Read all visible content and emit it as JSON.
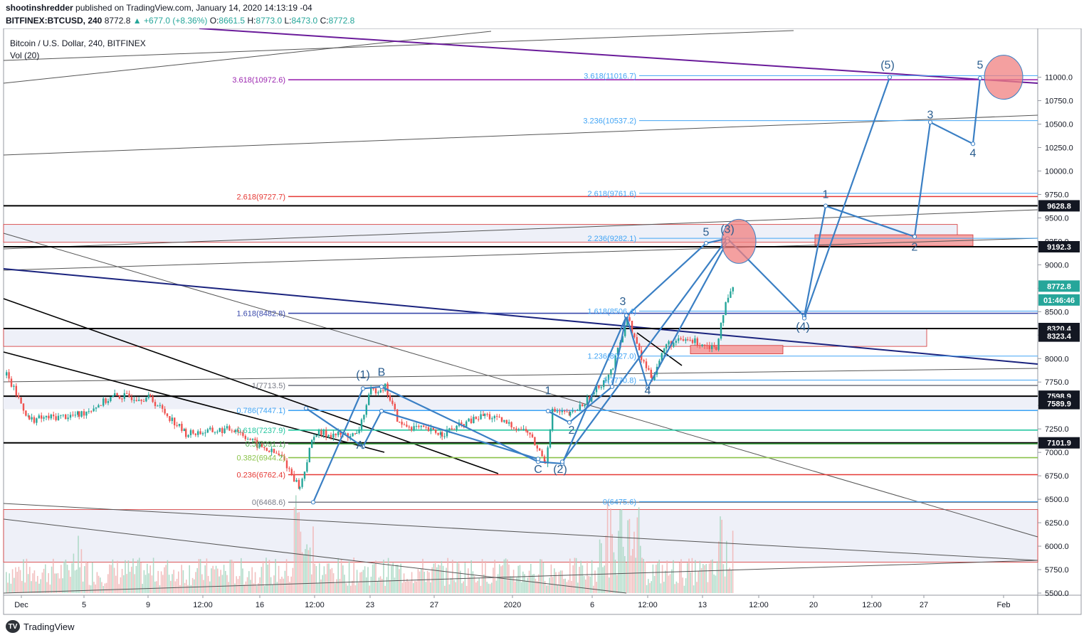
{
  "header": {
    "publisher": "shootinshredder",
    "published_text": "published on TradingView.com, January 14, 2020 14:13:19 -04",
    "symbol": "BITFINEX:BTCUSD, 240",
    "last": "8772.8",
    "change": "+677.0 (+8.36%)",
    "o_label": "O:",
    "o_value": "8661.5",
    "h_label": "H:",
    "h_value": "8773.0",
    "l_label": "L:",
    "l_value": "8473.0",
    "c_label": "C:",
    "c_value": "8772.8"
  },
  "legend": {
    "title": "Bitcoin / U.S. Dollar, 240, BITFINEX",
    "volume": "Vol (20)"
  },
  "footer": {
    "brand": "TradingView"
  },
  "colors": {
    "bull": "#26a69a",
    "bear": "#ef5350",
    "wave": "#3a7fc4",
    "purple_line": "#6a1b9a",
    "navy_line": "#1a237e"
  },
  "chart_data": {
    "type": "candlestick",
    "symbol": "BITFINEX:BTCUSD",
    "timeframe": "240",
    "ylim": [
      5500,
      11300
    ],
    "yticks": [
      5500,
      5750,
      6000,
      6250,
      6500,
      6750,
      7000,
      7250,
      7500,
      7750,
      8000,
      8250,
      8500,
      8750,
      9000,
      9250,
      9500,
      9750,
      10000,
      10250,
      10500,
      10750,
      11000
    ],
    "xlim": [
      0,
      1452
    ],
    "xticks": [
      {
        "x": 30,
        "label": "Dec"
      },
      {
        "x": 118,
        "label": "5"
      },
      {
        "x": 208,
        "label": "9"
      },
      {
        "x": 285,
        "label": "12:00"
      },
      {
        "x": 365,
        "label": "16"
      },
      {
        "x": 442,
        "label": "12:00"
      },
      {
        "x": 520,
        "label": "23"
      },
      {
        "x": 610,
        "label": "27"
      },
      {
        "x": 720,
        "label": "2020"
      },
      {
        "x": 832,
        "label": "6"
      },
      {
        "x": 910,
        "label": "12:00"
      },
      {
        "x": 987,
        "label": "13"
      },
      {
        "x": 1066,
        "label": "12:00"
      },
      {
        "x": 1143,
        "label": "20"
      },
      {
        "x": 1225,
        "label": "12:00"
      },
      {
        "x": 1298,
        "label": "27"
      },
      {
        "x": 1410,
        "label": "Feb"
      }
    ],
    "price_badges": [
      {
        "value": 9628.8,
        "label": "9628.8",
        "bg": "#131722"
      },
      {
        "value": 9192.3,
        "label": "9192.3",
        "bg": "#131722"
      },
      {
        "value": 8772.8,
        "label": "8772.8",
        "bg": "#26a69a"
      },
      {
        "value": 8625,
        "label": "01:46:46",
        "bg": "#26a69a"
      },
      {
        "value": 8320.4,
        "label": "8320.4",
        "bg": "#131722"
      },
      {
        "value": 8240,
        "label": "8323.4",
        "bg": "#131722"
      },
      {
        "value": 7598.9,
        "label": "7598.9",
        "bg": "#131722"
      },
      {
        "value": 7520,
        "label": "7589.9",
        "bg": "#131722"
      },
      {
        "value": 7101.9,
        "label": "7101.9",
        "bg": "#131722"
      }
    ],
    "horizontal_levels": [
      {
        "value": 9628.8,
        "color": "#000000",
        "width": 2
      },
      {
        "value": 9192.3,
        "color": "#000000",
        "width": 2
      },
      {
        "value": 8320.4,
        "color": "#000000",
        "width": 2
      },
      {
        "value": 7598.9,
        "color": "#000000",
        "width": 2
      },
      {
        "value": 7101.9,
        "color": "#000000",
        "width": 2
      }
    ],
    "fib_left": [
      {
        "value": 10972.6,
        "label": "3.618(10972.6)",
        "color": "#9c27b0"
      },
      {
        "value": 9727.7,
        "label": "2.618(9727.7)",
        "color": "#e53935"
      },
      {
        "value": 8482.8,
        "label": "1.618(8482.8)",
        "color": "#3949ab"
      },
      {
        "value": 7713.5,
        "label": "1(7713.5)",
        "color": "#787b86"
      },
      {
        "value": 7447.1,
        "label": "0.786(7447.1)",
        "color": "#42a5f5"
      },
      {
        "value": 7237.9,
        "label": "0.618(7237.9)",
        "color": "#26c6a0"
      },
      {
        "value": 7091.1,
        "label": "0.5(7091.1)",
        "color": "#4caf50"
      },
      {
        "value": 6944.2,
        "label": "0.382(6944.2)",
        "color": "#8bc34a"
      },
      {
        "value": 6762.4,
        "label": "0.236(6762.4)",
        "color": "#e53935"
      },
      {
        "value": 6468.6,
        "label": "0(6468.6)",
        "color": "#787b86"
      }
    ],
    "fib_right": [
      {
        "value": 11016.7,
        "label": "3.618(11016.7)",
        "color": "#42a5f5"
      },
      {
        "value": 10537.2,
        "label": "3.236(10537.2)",
        "color": "#42a5f5"
      },
      {
        "value": 9761.6,
        "label": "2.618(9761.6)",
        "color": "#42a5f5"
      },
      {
        "value": 9282.1,
        "label": "2.236(9282.1)",
        "color": "#42a5f5"
      },
      {
        "value": 8506.4,
        "label": "1.618(8506.4)",
        "color": "#42a5f5"
      },
      {
        "value": 8027.0,
        "label": "1.236(8027.0)",
        "color": "#42a5f5"
      },
      {
        "value": 7770.8,
        "label": "1(7770.8)",
        "color": "#42a5f5"
      },
      {
        "value": 6475.6,
        "label": "0(6475.6)",
        "color": "#42a5f5"
      }
    ],
    "wave_labels": [
      {
        "text": "(1)",
        "x": 510,
        "y": 7790
      },
      {
        "text": "B",
        "x": 536,
        "y": 7815
      },
      {
        "text": "A",
        "x": 506,
        "y": 7040
      },
      {
        "text": "C",
        "x": 756,
        "y": 6780
      },
      {
        "text": "(2)",
        "x": 787,
        "y": 6780
      },
      {
        "text": "1",
        "x": 770,
        "y": 7620
      },
      {
        "text": "2",
        "x": 803,
        "y": 7200
      },
      {
        "text": "3",
        "x": 875,
        "y": 8570
      },
      {
        "text": "4",
        "x": 910,
        "y": 7620
      },
      {
        "text": "5",
        "x": 992,
        "y": 9310
      },
      {
        "text": "(3)",
        "x": 1022,
        "y": 9340
      },
      {
        "text": "(4)",
        "x": 1128,
        "y": 8300
      },
      {
        "text": "1",
        "x": 1160,
        "y": 9710
      },
      {
        "text": "2",
        "x": 1285,
        "y": 9150
      },
      {
        "text": "3",
        "x": 1307,
        "y": 10560
      },
      {
        "text": "4",
        "x": 1367,
        "y": 10150
      },
      {
        "text": "(5)",
        "x": 1247,
        "y": 11090
      },
      {
        "text": "5",
        "x": 1377,
        "y": 11090
      }
    ]
  }
}
